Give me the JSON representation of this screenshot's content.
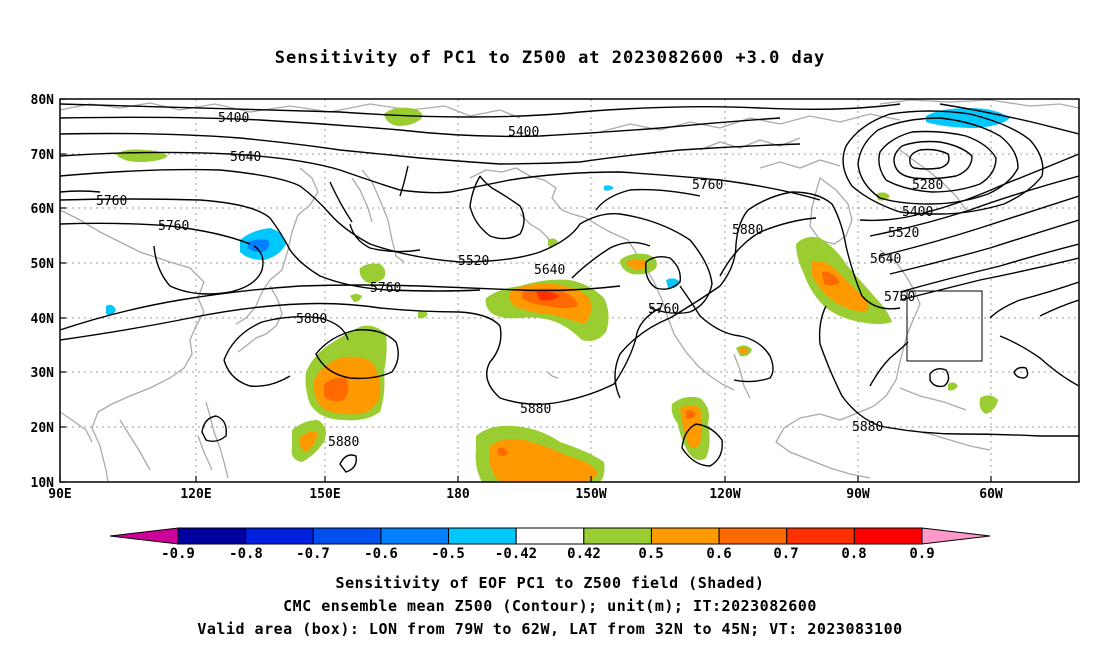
{
  "title": "Sensitivity of PC1 to Z500 at 2023082600 +3.0 day",
  "map": {
    "lat_labels": [
      "80N",
      "70N",
      "60N",
      "50N",
      "40N",
      "30N",
      "20N",
      "10N"
    ],
    "lon_labels": [
      "90E",
      "120E",
      "150E",
      "180",
      "150W",
      "120W",
      "90W",
      "60W"
    ],
    "contour_labels": [
      "5400",
      "5400",
      "5280",
      "5640",
      "5760",
      "5760",
      "5760",
      "5400",
      "5520",
      "5520",
      "5640",
      "5880",
      "5640",
      "5760",
      "5760",
      "5880",
      "5880",
      "5880",
      "5760",
      "5880"
    ],
    "valid_box": {
      "lon_from": "79W",
      "lon_to": "62W",
      "lat_from": "32N",
      "lat_to": "45N"
    },
    "colors": {
      "coast": "#aaaaaa",
      "contour": "#000000",
      "grid": "#999999",
      "green": "#9acd32",
      "orange": "#ff9900",
      "dark_orange": "#ff6a00",
      "red_orange": "#ff3000",
      "cyan": "#00c8ff",
      "blue": "#0080ff"
    }
  },
  "colorbar": {
    "labels": [
      "-0.9",
      "-0.8",
      "-0.7",
      "-0.6",
      "-0.5",
      "-0.42",
      "0.42",
      "0.5",
      "0.6",
      "0.7",
      "0.8",
      "0.9"
    ],
    "colors": [
      "#0000a0",
      "#0020e0",
      "#0050f0",
      "#0080ff",
      "#00c8ff",
      "#ffffff",
      "#9acd32",
      "#ff9900",
      "#ff6a00",
      "#ff3000",
      "#ff0000"
    ],
    "low_end_color": "#cc0099",
    "high_end_color": "#ff99cc"
  },
  "captions": [
    "Sensitivity of EOF PC1 to Z500 field (Shaded)",
    "CMC ensemble mean Z500 (Contour); unit(m); IT:2023082600",
    "Valid area (box): LON from 79W to 62W, LAT from 32N to 45N; VT: 2023083100"
  ]
}
